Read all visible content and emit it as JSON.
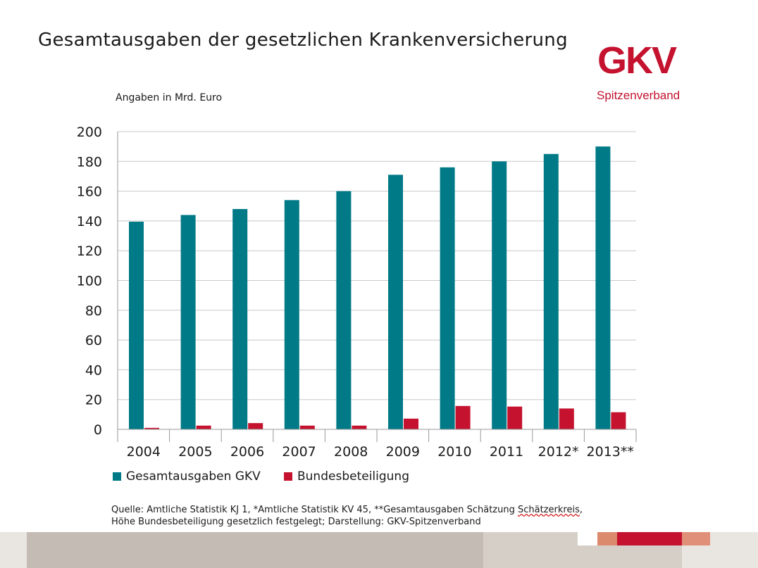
{
  "title": "Gesamtausgaben der gesetzlichen Krankenversicherung",
  "unit_note": "Angaben in Mrd. Euro",
  "logo": {
    "text": "GKV",
    "subtitle": "Spitzenverband"
  },
  "colors": {
    "teal": "#007a87",
    "red": "#c4122f",
    "logo_red": "#c4122f",
    "grid": "#c8c8c8"
  },
  "legend": {
    "series1": "Gesamtausgaben GKV",
    "series2": "Bundesbeteiligung"
  },
  "source": {
    "line1_before": "Quelle: Amtliche Statistik KJ 1, *Amtliche Statistik KV 45, **Gesamtausgaben Schätzung ",
    "line1_flagged": "Schätzerkreis",
    "line1_after": ",",
    "line2": "Höhe Bundesbeteiligung gesetzlich festgelegt; Darstellung: GKV-Spitzenverband"
  },
  "chart_data": {
    "type": "bar",
    "categories": [
      "2004",
      "2005",
      "2006",
      "2007",
      "2008",
      "2009",
      "2010",
      "2011",
      "2012*",
      "2013**"
    ],
    "series": [
      {
        "name": "Gesamtausgaben GKV",
        "color": "#007a87",
        "values": [
          139.5,
          144,
          148,
          154,
          160,
          171,
          176,
          180,
          185,
          190
        ]
      },
      {
        "name": "Bundesbeteiligung",
        "color": "#c4122f",
        "values": [
          1,
          2.5,
          4.2,
          2.5,
          2.5,
          7.2,
          15.7,
          15.3,
          14,
          11.5
        ]
      }
    ],
    "xlabel": "",
    "ylabel": "",
    "ylim": [
      0,
      200
    ],
    "yticks": [
      0,
      20,
      40,
      60,
      80,
      100,
      120,
      140,
      160,
      180,
      200
    ],
    "grid": true,
    "legend_position": "bottom-left"
  }
}
